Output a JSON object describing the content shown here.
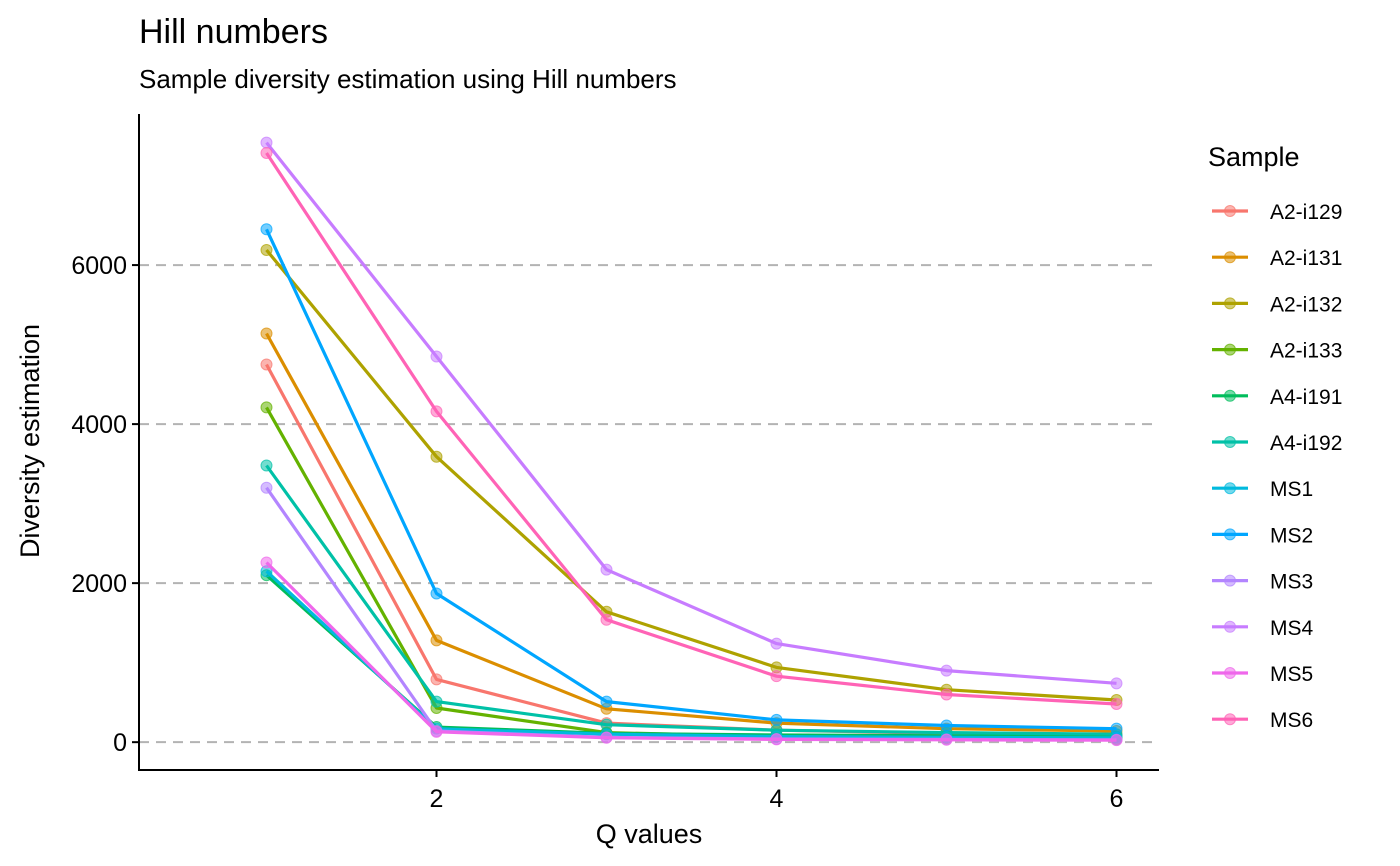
{
  "chart_data": {
    "type": "line",
    "title": "Hill numbers",
    "subtitle": "Sample diversity estimation using Hill numbers",
    "xlabel": "Q values",
    "ylabel": "Diversity estimation",
    "x": [
      1,
      2,
      3,
      4,
      5,
      6
    ],
    "xticks": [
      2,
      4,
      6
    ],
    "yticks": [
      0,
      2000,
      4000,
      6000
    ],
    "xlim": [
      0.25,
      6.25
    ],
    "ylim": [
      -350,
      7900
    ],
    "grid": "horizontal-dashed",
    "legend": {
      "title": "Sample",
      "position": "right"
    },
    "series": [
      {
        "name": "A2-i129",
        "color": "#F8766D",
        "values": [
          4750,
          790,
          240,
          150,
          110,
          90
        ]
      },
      {
        "name": "A2-i131",
        "color": "#DB8E00",
        "values": [
          5140,
          1280,
          420,
          240,
          170,
          140
        ]
      },
      {
        "name": "A2-i132",
        "color": "#AEA200",
        "values": [
          6190,
          3590,
          1640,
          940,
          660,
          530
        ]
      },
      {
        "name": "A2-i133",
        "color": "#64B200",
        "values": [
          4210,
          430,
          120,
          70,
          50,
          40
        ]
      },
      {
        "name": "A4-i191",
        "color": "#00BD5C",
        "values": [
          2100,
          190,
          110,
          90,
          80,
          70
        ]
      },
      {
        "name": "A4-i192",
        "color": "#00C1A7",
        "values": [
          3480,
          510,
          220,
          150,
          120,
          100
        ]
      },
      {
        "name": "MS1",
        "color": "#00BADE",
        "values": [
          2150,
          170,
          100,
          70,
          60,
          55
        ]
      },
      {
        "name": "MS2",
        "color": "#00A6FF",
        "values": [
          6450,
          1870,
          510,
          280,
          210,
          170
        ]
      },
      {
        "name": "MS3",
        "color": "#B385FF",
        "values": [
          3200,
          140,
          60,
          40,
          35,
          30
        ]
      },
      {
        "name": "MS4",
        "color": "#C77CFF",
        "values": [
          7540,
          4850,
          2170,
          1240,
          900,
          740
        ]
      },
      {
        "name": "MS5",
        "color": "#EF67EB",
        "values": [
          2260,
          130,
          55,
          35,
          30,
          25
        ]
      },
      {
        "name": "MS6",
        "color": "#FF63B6",
        "values": [
          7410,
          4160,
          1540,
          830,
          600,
          480
        ]
      }
    ]
  }
}
